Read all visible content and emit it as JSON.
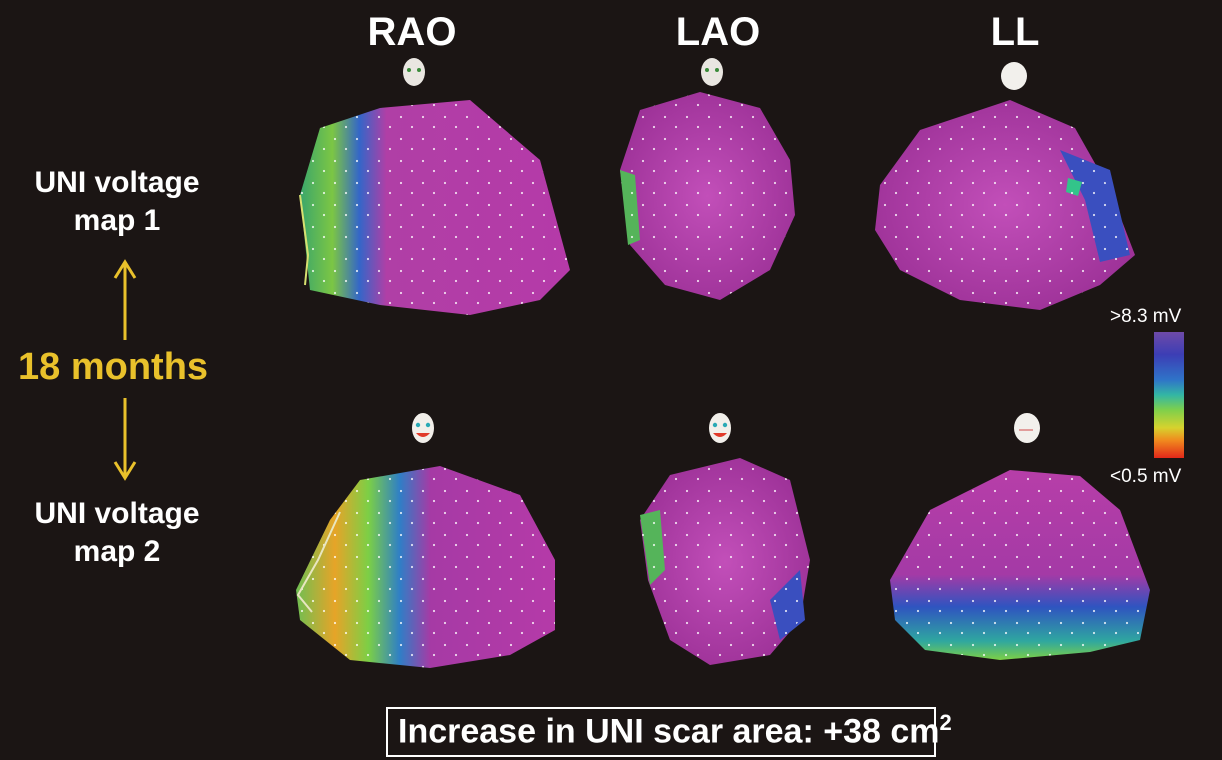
{
  "views": [
    "RAO",
    "LAO",
    "LL"
  ],
  "rows": {
    "map1": [
      "UNI voltage",
      "map 1"
    ],
    "map2": [
      "UNI voltage",
      "map 2"
    ]
  },
  "interval": "18 months",
  "colorbar": {
    "max_label": ">8.3 mV",
    "min_label": "<0.5 mV",
    "colors": [
      "#6e4aa8",
      "#3c3eb5",
      "#2f74c8",
      "#33b6a4",
      "#7fd04b",
      "#d6d22e",
      "#f08a1e",
      "#e2281a"
    ]
  },
  "footer": {
    "text": "Increase in UNI scar area: +38 cm",
    "superscript": "2"
  },
  "colors": {
    "background": "#1b1514",
    "label_text": "#ffffff",
    "accent_yellow": "#e9c12b",
    "map_magenta": "#b53aa8"
  }
}
